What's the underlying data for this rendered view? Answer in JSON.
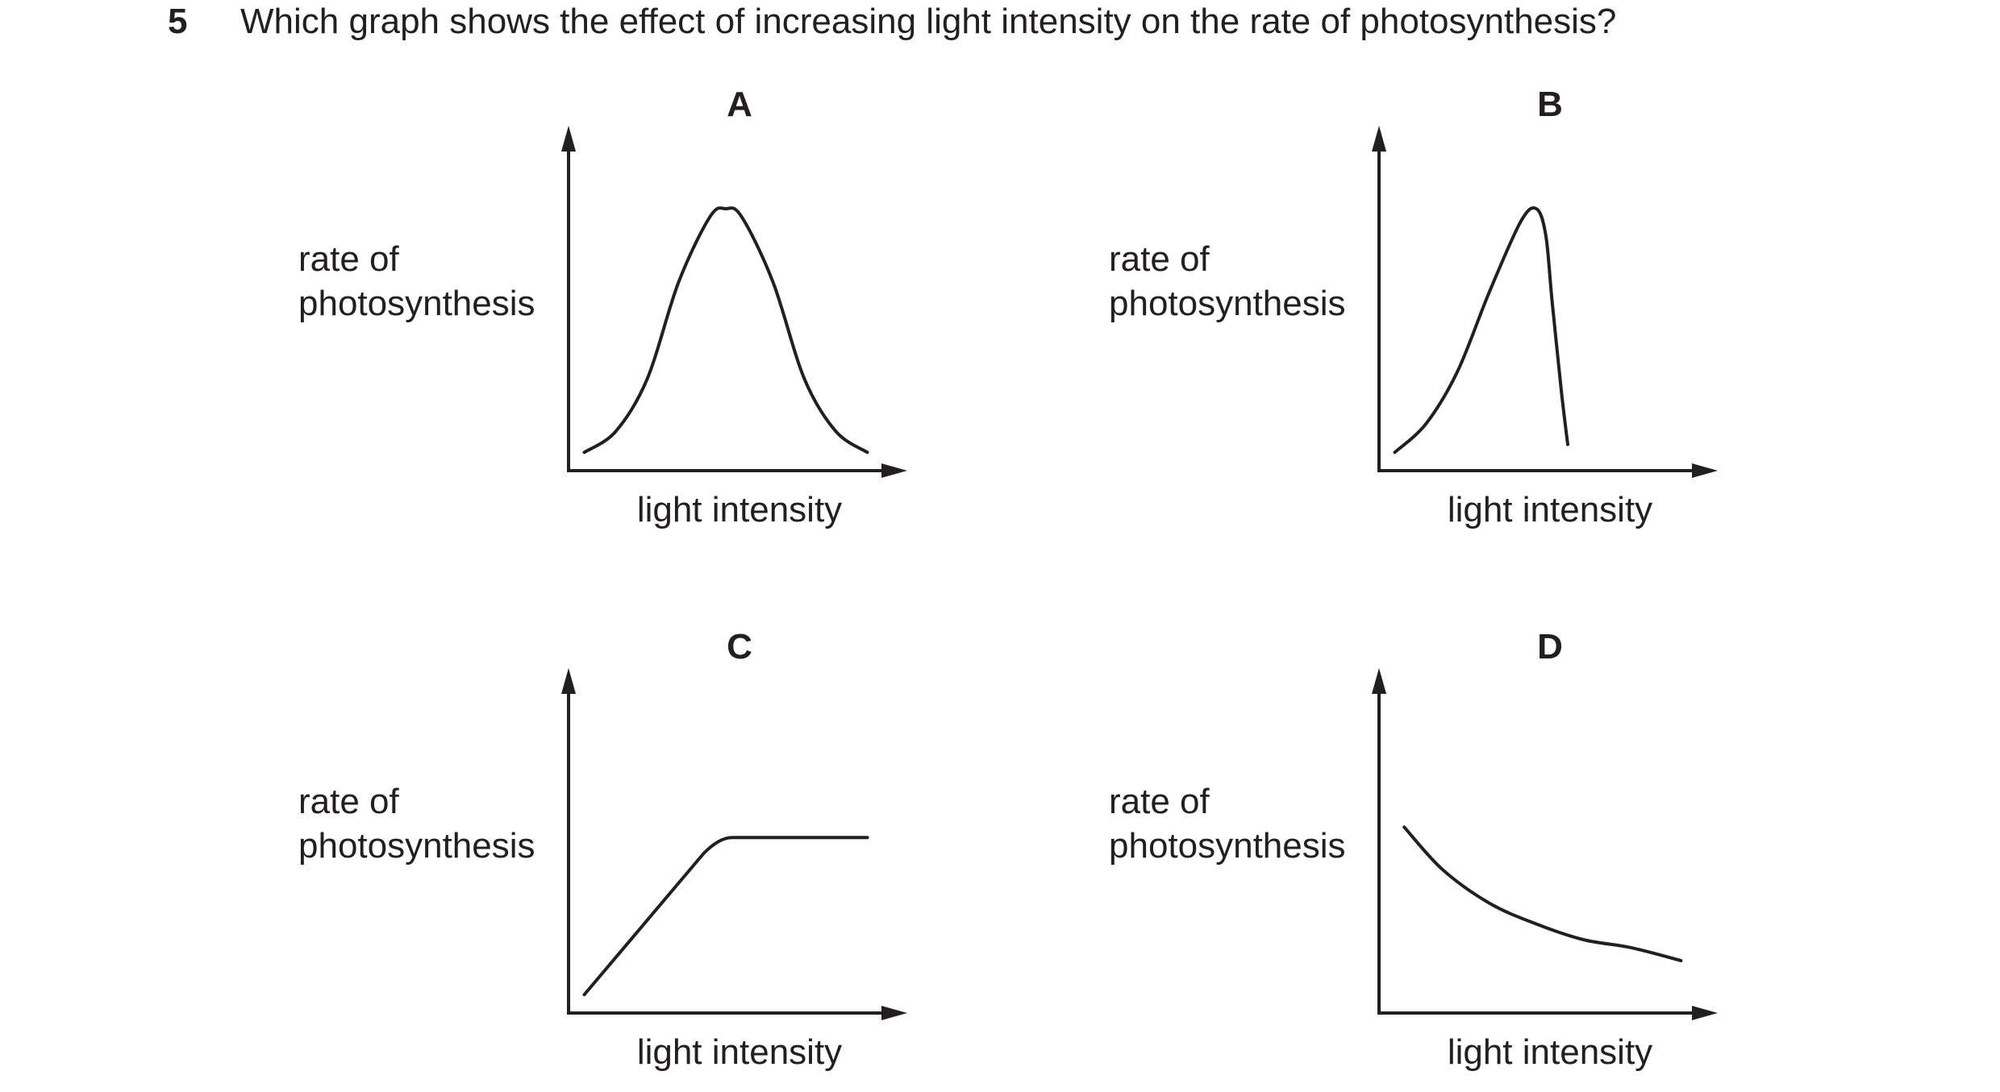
{
  "question": {
    "number": "5",
    "text": "Which graph shows the effect of increasing light intensity on the rate of photosynthesis?"
  },
  "chart_data": [
    {
      "type": "line",
      "option": "A",
      "ylabel_lines": [
        "rate of",
        "photosynthesis"
      ],
      "xlabel": "light intensity",
      "shape": "bell-shaped rise and symmetric fall",
      "series": [
        {
          "x": [
            0.05,
            0.15,
            0.25,
            0.35,
            0.45,
            0.5,
            0.55,
            0.65,
            0.75,
            0.85,
            0.95
          ],
          "y": [
            0.07,
            0.15,
            0.35,
            0.72,
            0.97,
            1.0,
            0.97,
            0.72,
            0.35,
            0.15,
            0.07
          ]
        }
      ]
    },
    {
      "type": "line",
      "option": "B",
      "ylabel_lines": [
        "rate of",
        "photosynthesis"
      ],
      "xlabel": "light intensity",
      "shape": "gradual rise to a peak then a steep drop",
      "series": [
        {
          "x": [
            0.05,
            0.15,
            0.25,
            0.35,
            0.45,
            0.5,
            0.53,
            0.55,
            0.58,
            0.6
          ],
          "y": [
            0.07,
            0.18,
            0.38,
            0.68,
            0.95,
            1.0,
            0.9,
            0.65,
            0.3,
            0.1
          ]
        }
      ]
    },
    {
      "type": "line",
      "option": "C",
      "ylabel_lines": [
        "rate of",
        "photosynthesis"
      ],
      "xlabel": "light intensity",
      "shape": "linear rise then plateau",
      "series": [
        {
          "x": [
            0.05,
            0.43,
            0.52,
            0.7,
            0.95
          ],
          "y": [
            0.07,
            0.61,
            0.67,
            0.67,
            0.67
          ]
        }
      ]
    },
    {
      "type": "line",
      "option": "D",
      "ylabel_lines": [
        "rate of",
        "photosynthesis"
      ],
      "xlabel": "light intensity",
      "shape": "decreasing curve, steep at first then levelling off",
      "series": [
        {
          "x": [
            0.08,
            0.2,
            0.35,
            0.5,
            0.65,
            0.8,
            0.96
          ],
          "y": [
            0.71,
            0.55,
            0.42,
            0.34,
            0.28,
            0.25,
            0.2
          ]
        }
      ]
    }
  ]
}
